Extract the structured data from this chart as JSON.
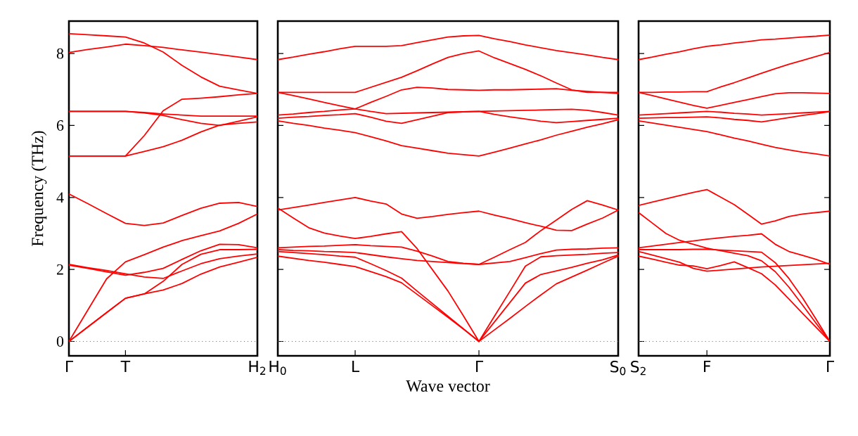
{
  "chart_data": [
    {
      "type": "line",
      "ylabel": "Frequency (THz)",
      "ylim": [
        -0.4,
        8.9
      ],
      "yticks": [
        0,
        2,
        4,
        6,
        8
      ],
      "categories": [
        "Γ",
        null,
        null,
        "T",
        null,
        null,
        null,
        null,
        null,
        null,
        "H$_{2}$"
      ],
      "ref_lines": [
        {
          "axis": "y",
          "value": 0,
          "color": "#4d4dff",
          "line_style": "dotted"
        }
      ],
      "series": [
        {
          "color": "#ff0000",
          "values": [
            8.55,
            8.52,
            8.49,
            8.46,
            8.29,
            8.04,
            7.67,
            7.35,
            7.09,
            6.99,
            6.89
          ]
        },
        {
          "color": "#ff0000",
          "values": [
            8.03,
            8.11,
            8.18,
            8.26,
            8.22,
            8.17,
            8.1,
            8.04,
            7.97,
            7.9,
            7.83
          ]
        },
        {
          "color": "#ff0000",
          "values": [
            6.39,
            6.39,
            6.39,
            6.39,
            6.35,
            6.28,
            6.16,
            6.06,
            6.0,
            6.12,
            6.24
          ]
        },
        {
          "color": "#ff0000",
          "values": [
            6.39,
            6.39,
            6.39,
            6.39,
            6.36,
            6.32,
            6.29,
            6.26,
            6.26,
            6.26,
            6.26
          ]
        },
        {
          "color": "#ff0000",
          "values": [
            5.15,
            5.15,
            5.15,
            5.15,
            5.72,
            6.41,
            6.73,
            6.76,
            6.8,
            6.85,
            6.89
          ]
        },
        {
          "color": "#ff0000",
          "values": [
            5.15,
            5.15,
            5.15,
            5.15,
            5.28,
            5.41,
            5.59,
            5.82,
            6.01,
            6.06,
            6.1
          ]
        },
        {
          "color": "#ff0000",
          "values": [
            4.1,
            3.83,
            3.55,
            3.28,
            3.22,
            3.29,
            3.5,
            3.7,
            3.84,
            3.86,
            3.75
          ]
        },
        {
          "color": "#ff0000",
          "values": [
            2.14,
            2.05,
            1.97,
            1.88,
            1.79,
            1.75,
            1.96,
            2.16,
            2.3,
            2.37,
            2.43
          ]
        },
        {
          "color": "#ff0000",
          "values": [
            0,
            0.87,
            1.74,
            2.21,
            2.41,
            2.62,
            2.8,
            2.94,
            3.07,
            3.28,
            3.54
          ]
        },
        {
          "color": "#ff0000",
          "values": [
            2.12,
            2.03,
            1.93,
            1.84,
            1.92,
            2.03,
            2.28,
            2.52,
            2.7,
            2.69,
            2.6
          ]
        },
        {
          "color": "#ff0000",
          "values": [
            0,
            0.4,
            0.8,
            1.2,
            1.32,
            1.67,
            2.14,
            2.42,
            2.55,
            2.55,
            2.56
          ]
        },
        {
          "color": "#ff0000",
          "values": [
            0,
            0.4,
            0.8,
            1.2,
            1.32,
            1.43,
            1.61,
            1.87,
            2.07,
            2.2,
            2.34
          ]
        }
      ]
    },
    {
      "type": "line",
      "xlabel": "Wave vector",
      "ylim": [
        -0.4,
        8.9
      ],
      "yticks": [
        0,
        2,
        4,
        6,
        8
      ],
      "tick_labels": "x",
      "categories": [
        "H$_{0}$",
        null,
        null,
        null,
        null,
        "L",
        null,
        null,
        null,
        null,
        null,
        null,
        null,
        "Γ",
        null,
        null,
        null,
        null,
        null,
        null,
        null,
        null,
        "S$_{0}$"
      ],
      "ref_lines": [
        {
          "axis": "y",
          "value": 0,
          "color": "#4d4dff",
          "line_style": "dotted"
        }
      ],
      "series": [
        {
          "color": "#ff0000",
          "values": [
            7.83,
            7.9,
            7.98,
            8.05,
            8.13,
            8.2,
            8.2,
            8.2,
            8.22,
            8.3,
            8.38,
            8.46,
            8.49,
            8.5,
            8.41,
            8.33,
            8.24,
            8.16,
            8.08,
            8.02,
            7.96,
            7.89,
            7.83
          ]
        },
        {
          "color": "#ff0000",
          "values": [
            6.92,
            6.92,
            6.92,
            6.92,
            6.92,
            6.92,
            7.06,
            7.2,
            7.34,
            7.52,
            7.71,
            7.89,
            8.0,
            8.07,
            7.88,
            7.72,
            7.56,
            7.38,
            7.18,
            6.99,
            6.92,
            6.92,
            6.92
          ]
        },
        {
          "color": "#ff0000",
          "values": [
            6.92,
            6.83,
            6.74,
            6.64,
            6.55,
            6.46,
            6.39,
            6.33,
            6.34,
            6.35,
            6.36,
            6.37,
            6.38,
            6.39,
            6.31,
            6.24,
            6.18,
            6.12,
            6.08,
            6.11,
            6.14,
            6.17,
            6.2
          ]
        },
        {
          "color": "#ff0000",
          "values": [
            6.29,
            6.32,
            6.36,
            6.39,
            6.43,
            6.46,
            6.64,
            6.81,
            6.99,
            7.06,
            7.04,
            7.0,
            6.99,
            6.98,
            6.99,
            6.99,
            7.0,
            7.01,
            7.02,
            6.98,
            6.95,
            6.92,
            6.89
          ]
        },
        {
          "color": "#ff0000",
          "values": [
            6.2,
            6.23,
            6.25,
            6.28,
            6.3,
            6.33,
            6.23,
            6.12,
            6.06,
            6.16,
            6.26,
            6.36,
            6.38,
            6.39,
            6.4,
            6.41,
            6.42,
            6.43,
            6.44,
            6.45,
            6.42,
            6.36,
            6.29
          ]
        },
        {
          "color": "#ff0000",
          "values": [
            6.13,
            6.06,
            6.0,
            5.93,
            5.87,
            5.8,
            5.69,
            5.57,
            5.44,
            5.37,
            5.3,
            5.23,
            5.19,
            5.15,
            5.26,
            5.37,
            5.49,
            5.6,
            5.73,
            5.84,
            5.95,
            6.05,
            6.16
          ]
        },
        {
          "color": "#ff0000",
          "values": [
            3.65,
            3.72,
            3.79,
            3.86,
            3.93,
            4.0,
            3.9,
            3.82,
            3.54,
            3.42,
            3.47,
            3.53,
            3.58,
            3.62,
            3.51,
            3.41,
            3.3,
            3.2,
            3.09,
            3.08,
            3.26,
            3.43,
            3.65
          ]
        },
        {
          "color": "#ff0000",
          "values": [
            2.6,
            2.62,
            2.64,
            2.65,
            2.67,
            2.69,
            2.66,
            2.64,
            2.62,
            2.51,
            2.37,
            2.22,
            2.17,
            2.14,
            2.18,
            2.22,
            2.33,
            2.44,
            2.54,
            2.56,
            2.57,
            2.59,
            2.6
          ]
        },
        {
          "color": "#ff0000",
          "values": [
            2.55,
            2.53,
            2.52,
            2.5,
            2.49,
            2.47,
            2.41,
            2.35,
            2.3,
            2.25,
            2.22,
            2.19,
            2.16,
            2.14,
            2.34,
            2.55,
            2.75,
            3.08,
            3.37,
            3.67,
            3.91,
            3.79,
            3.65
          ]
        },
        {
          "color": "#ff0000",
          "values": [
            3.71,
            3.43,
            3.16,
            3.01,
            2.93,
            2.86,
            2.92,
            2.99,
            3.05,
            2.58,
            1.99,
            1.4,
            0.71,
            0,
            0.7,
            1.39,
            2.09,
            2.35,
            2.38,
            2.4,
            2.42,
            2.45,
            2.47
          ]
        },
        {
          "color": "#ff0000",
          "values": [
            2.5,
            2.47,
            2.44,
            2.41,
            2.37,
            2.34,
            2.16,
            1.97,
            1.76,
            1.4,
            1.05,
            0.7,
            0.35,
            0,
            0.54,
            1.08,
            1.62,
            1.86,
            1.96,
            2.06,
            2.17,
            2.27,
            2.4
          ]
        },
        {
          "color": "#ff0000",
          "values": [
            2.37,
            2.31,
            2.25,
            2.2,
            2.14,
            2.08,
            1.94,
            1.8,
            1.63,
            1.31,
            0.99,
            0.67,
            0.34,
            0,
            0.32,
            0.64,
            0.97,
            1.29,
            1.6,
            1.79,
            1.98,
            2.18,
            2.37
          ]
        }
      ]
    },
    {
      "type": "line",
      "ylim": [
        -0.4,
        8.9
      ],
      "yticks": [
        0,
        2,
        4,
        6,
        8
      ],
      "tick_labels": "x",
      "categories": [
        "S$_{2}$",
        null,
        null,
        null,
        null,
        "F",
        null,
        null,
        null,
        null,
        null,
        null,
        null,
        null,
        "Γ"
      ],
      "ref_lines": [
        {
          "axis": "y",
          "value": 0,
          "color": "#4d4dff",
          "line_style": "dotted"
        }
      ],
      "series": [
        {
          "color": "#ff0000",
          "values": [
            7.83,
            7.9,
            7.98,
            8.05,
            8.13,
            8.2,
            8.24,
            8.29,
            8.33,
            8.38,
            8.4,
            8.43,
            8.46,
            8.48,
            8.51
          ]
        },
        {
          "color": "#ff0000",
          "values": [
            6.92,
            6.92,
            6.93,
            6.93,
            6.94,
            6.94,
            7.07,
            7.19,
            7.32,
            7.45,
            7.58,
            7.7,
            7.81,
            7.92,
            8.03
          ]
        },
        {
          "color": "#ff0000",
          "values": [
            6.92,
            6.83,
            6.74,
            6.65,
            6.56,
            6.48,
            6.56,
            6.64,
            6.72,
            6.8,
            6.88,
            6.91,
            6.91,
            6.9,
            6.89
          ]
        },
        {
          "color": "#ff0000",
          "values": [
            6.29,
            6.31,
            6.33,
            6.35,
            6.37,
            6.39,
            6.37,
            6.34,
            6.32,
            6.29,
            6.31,
            6.33,
            6.35,
            6.37,
            6.39
          ]
        },
        {
          "color": "#ff0000",
          "values": [
            6.2,
            6.21,
            6.22,
            6.22,
            6.23,
            6.24,
            6.21,
            6.17,
            6.14,
            6.1,
            6.16,
            6.22,
            6.28,
            6.33,
            6.39
          ]
        },
        {
          "color": "#ff0000",
          "values": [
            6.13,
            6.07,
            6.01,
            5.95,
            5.89,
            5.83,
            5.74,
            5.65,
            5.57,
            5.48,
            5.39,
            5.32,
            5.26,
            5.21,
            5.15
          ]
        },
        {
          "color": "#ff0000",
          "values": [
            3.78,
            3.87,
            3.96,
            4.05,
            4.14,
            4.22,
            4.01,
            3.8,
            3.53,
            3.26,
            3.35,
            3.47,
            3.54,
            3.58,
            3.62
          ]
        },
        {
          "color": "#ff0000",
          "values": [
            3.58,
            3.29,
            3.0,
            2.81,
            2.7,
            2.59,
            2.52,
            2.45,
            2.38,
            2.24,
            1.94,
            1.51,
            1.01,
            0.5,
            0
          ]
        },
        {
          "color": "#ff0000",
          "values": [
            2.6,
            2.65,
            2.7,
            2.75,
            2.79,
            2.84,
            2.88,
            2.92,
            2.95,
            2.99,
            2.7,
            2.5,
            2.39,
            2.28,
            2.14
          ]
        },
        {
          "color": "#ff0000",
          "values": [
            2.55,
            2.55,
            2.55,
            2.55,
            2.56,
            2.56,
            2.54,
            2.52,
            2.5,
            2.48,
            2.19,
            1.75,
            1.21,
            0.61,
            0
          ]
        },
        {
          "color": "#ff0000",
          "values": [
            2.37,
            2.29,
            2.2,
            2.12,
            2.1,
            2.02,
            2.11,
            2.21,
            2.05,
            1.88,
            1.57,
            1.18,
            0.78,
            0.39,
            0
          ]
        },
        {
          "color": "#ff0000",
          "values": [
            2.5,
            2.4,
            2.3,
            2.2,
            2.03,
            1.95,
            1.98,
            2.01,
            2.04,
            2.07,
            2.09,
            2.11,
            2.13,
            2.15,
            2.17
          ]
        }
      ]
    }
  ]
}
